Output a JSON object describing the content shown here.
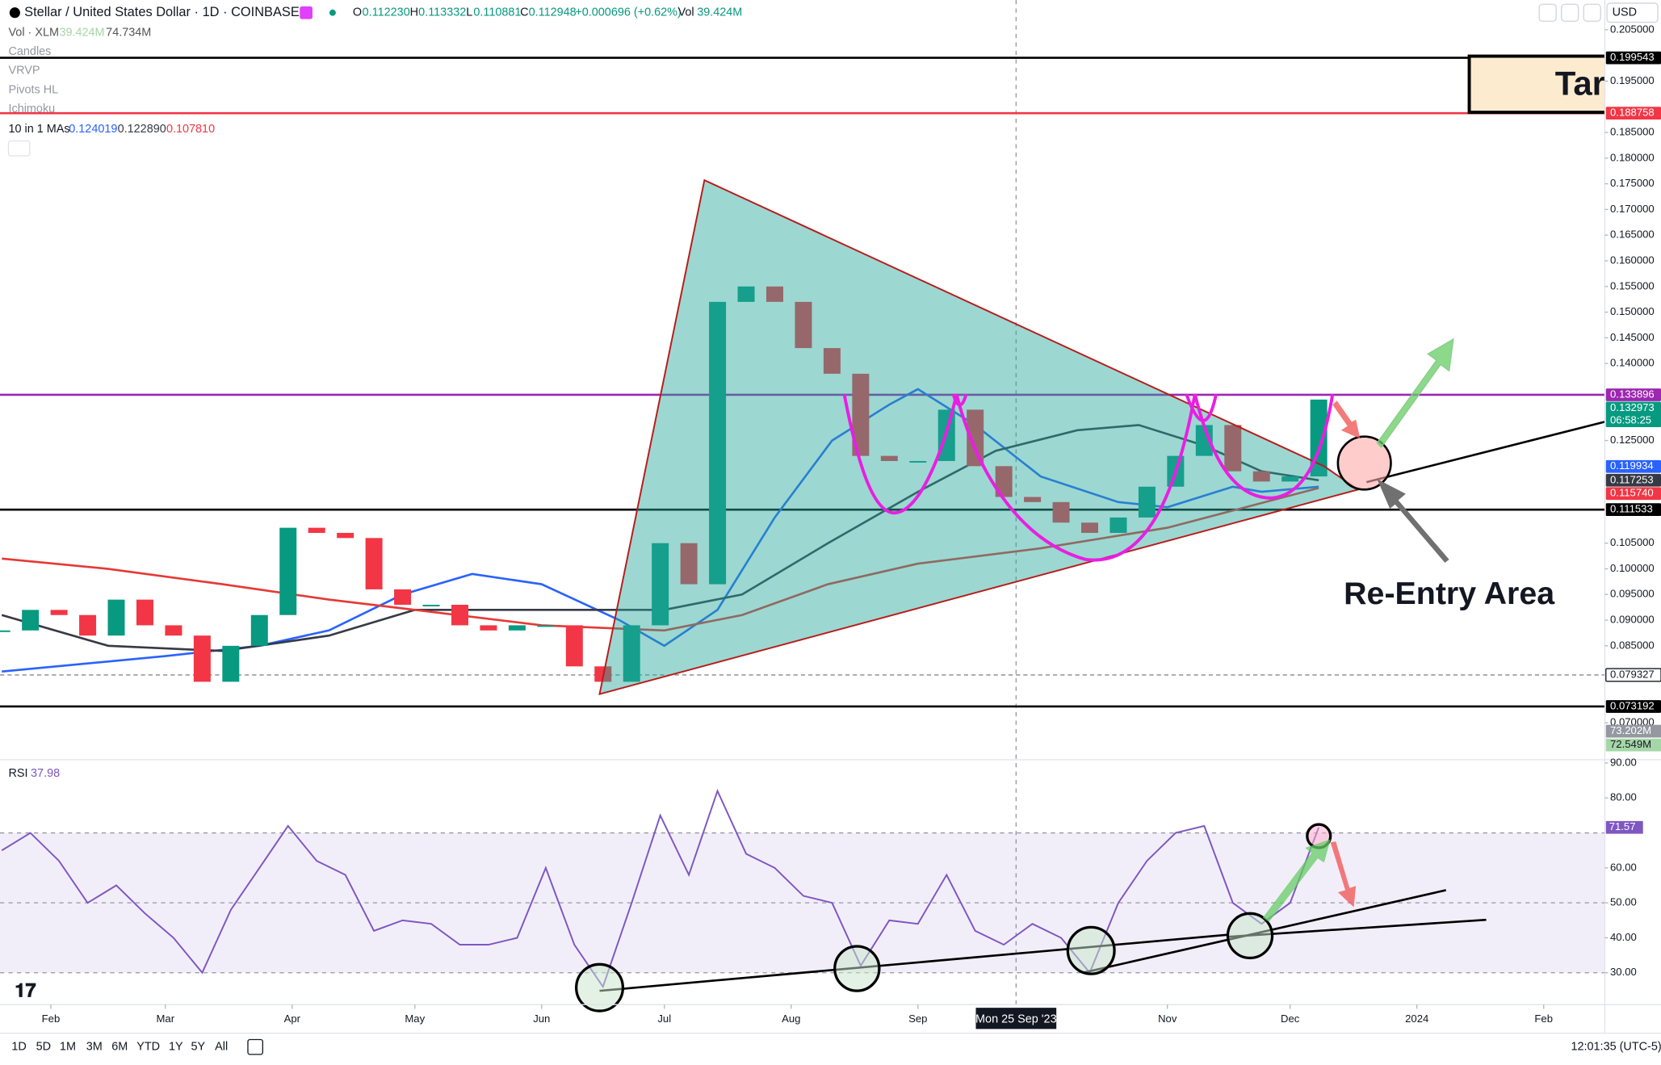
{
  "header": {
    "symbol": "Stellar / United States Dollar · 1D · COINBASE",
    "o_label": "O",
    "open": "0.112230",
    "h_label": "H",
    "high": "0.113332",
    "l_label": "L",
    "low": "0.110881",
    "c_label": "C",
    "close": "0.112948",
    "change": "+0.000696 (+0.62%)",
    "vol_label": "Vol",
    "volume": "39.424M",
    "currency": "USD"
  },
  "indicators": {
    "vol_title": "Vol · XLM",
    "vol_value": "39.424M",
    "vol_ma": "74.734M",
    "hidden": [
      "Candles",
      "VRVP",
      "Pivots HL",
      "Ichimoku"
    ],
    "ma_title": "10 in 1 MAs",
    "ma_values": [
      "0.124019",
      "0.122890",
      "0.107810"
    ],
    "rsi_title": "RSI",
    "rsi_value": "37.98"
  },
  "toolbar": {
    "ranges": [
      "1D",
      "5D",
      "1M",
      "3M",
      "6M",
      "YTD",
      "1Y",
      "5Y",
      "All"
    ],
    "clock": "12:01:35 (UTC-5)"
  },
  "chart_data": [
    {
      "type": "candlestick",
      "x": [
        "2023-01-20",
        "2023-01-27",
        "2023-02-03",
        "2023-02-10",
        "2023-02-17",
        "2023-02-24",
        "2023-03-03",
        "2023-03-10",
        "2023-03-17",
        "2023-03-24",
        "2023-03-31",
        "2023-04-07",
        "2023-04-14",
        "2023-04-21",
        "2023-04-28",
        "2023-05-05",
        "2023-05-12",
        "2023-05-19",
        "2023-05-26",
        "2023-06-02",
        "2023-06-09",
        "2023-06-16",
        "2023-06-23",
        "2023-06-30",
        "2023-07-07",
        "2023-07-14",
        "2023-07-21",
        "2023-07-28",
        "2023-08-04",
        "2023-08-11",
        "2023-08-18",
        "2023-08-25",
        "2023-09-01",
        "2023-09-08",
        "2023-09-15",
        "2023-09-22",
        "2023-09-29",
        "2023-10-06",
        "2023-10-13",
        "2023-10-20",
        "2023-10-27",
        "2023-11-03",
        "2023-11-10",
        "2023-11-17",
        "2023-11-24",
        "2023-12-01",
        "2023-12-08"
      ],
      "close": [
        0.088,
        0.092,
        0.091,
        0.087,
        0.094,
        0.089,
        0.087,
        0.078,
        0.085,
        0.091,
        0.108,
        0.107,
        0.106,
        0.096,
        0.093,
        0.093,
        0.089,
        0.088,
        0.089,
        0.089,
        0.081,
        0.078,
        0.089,
        0.105,
        0.097,
        0.152,
        0.155,
        0.152,
        0.143,
        0.138,
        0.122,
        0.121,
        0.121,
        0.131,
        0.12,
        0.114,
        0.113,
        0.109,
        0.107,
        0.11,
        0.116,
        0.122,
        0.128,
        0.119,
        0.117,
        0.118,
        0.132973
      ],
      "up_color": "#089981",
      "down_color": "#f23645",
      "moving_averages": [
        {
          "color": "#2962ff",
          "x": [
            "2023-01-20",
            "2023-03-01",
            "2023-03-24",
            "2023-04-10",
            "2023-04-28",
            "2023-05-15",
            "2023-06-01",
            "2023-06-20",
            "2023-07-01",
            "2023-07-14",
            "2023-07-28",
            "2023-08-11",
            "2023-08-25",
            "2023-09-01",
            "2023-09-15",
            "2023-10-01",
            "2023-10-20",
            "2023-11-01",
            "2023-11-17",
            "2023-11-24",
            "2023-12-08"
          ],
          "values": [
            0.08,
            0.083,
            0.085,
            0.088,
            0.095,
            0.099,
            0.097,
            0.09,
            0.085,
            0.092,
            0.11,
            0.125,
            0.132,
            0.135,
            0.128,
            0.118,
            0.113,
            0.112,
            0.116,
            0.115,
            0.116
          ]
        },
        {
          "color": "#363a45",
          "x": [
            "2023-01-20",
            "2023-02-15",
            "2023-03-15",
            "2023-04-10",
            "2023-05-01",
            "2023-06-01",
            "2023-07-01",
            "2023-07-20",
            "2023-08-10",
            "2023-09-01",
            "2023-09-20",
            "2023-10-10",
            "2023-10-25",
            "2023-11-10",
            "2023-11-24",
            "2023-12-08"
          ],
          "values": [
            0.091,
            0.085,
            0.084,
            0.087,
            0.092,
            0.092,
            0.092,
            0.095,
            0.105,
            0.115,
            0.123,
            0.127,
            0.128,
            0.124,
            0.119,
            0.117253
          ]
        },
        {
          "color": "#e53935",
          "x": [
            "2023-01-20",
            "2023-02-15",
            "2023-03-15",
            "2023-04-10",
            "2023-05-01",
            "2023-06-01",
            "2023-07-01",
            "2023-07-20",
            "2023-08-10",
            "2023-09-01",
            "2023-10-01",
            "2023-11-01",
            "2023-12-08"
          ],
          "values": [
            0.102,
            0.1,
            0.097,
            0.094,
            0.092,
            0.089,
            0.088,
            0.091,
            0.097,
            0.101,
            0.104,
            0.108,
            0.11574
          ]
        }
      ],
      "ylim": [
        0.0628,
        0.2108
      ],
      "yticks": [
        {
          "value": 0.205,
          "label": "0.205000"
        },
        {
          "value": 0.195,
          "label": "0.195000"
        },
        {
          "value": 0.185,
          "label": "0.185000"
        },
        {
          "value": 0.18,
          "label": "0.180000"
        },
        {
          "value": 0.175,
          "label": "0.175000"
        },
        {
          "value": 0.17,
          "label": "0.170000"
        },
        {
          "value": 0.165,
          "label": "0.165000"
        },
        {
          "value": 0.16,
          "label": "0.160000"
        },
        {
          "value": 0.155,
          "label": "0.155000"
        },
        {
          "value": 0.15,
          "label": "0.150000"
        },
        {
          "value": 0.145,
          "label": "0.145000"
        },
        {
          "value": 0.14,
          "label": "0.140000"
        },
        {
          "value": 0.125,
          "label": "0.125000"
        },
        {
          "value": 0.105,
          "label": "0.105000"
        },
        {
          "value": 0.1,
          "label": "0.100000"
        },
        {
          "value": 0.095,
          "label": "0.095000"
        },
        {
          "value": 0.09,
          "label": "0.090000"
        },
        {
          "value": 0.085,
          "label": "0.085000"
        },
        {
          "value": 0.07,
          "label": "0.070000"
        }
      ],
      "xticks": [
        {
          "value": "2023-02-01",
          "label": "Feb"
        },
        {
          "value": "2023-03-01",
          "label": "Mar"
        },
        {
          "value": "2023-04-01",
          "label": "Apr"
        },
        {
          "value": "2023-05-01",
          "label": "May"
        },
        {
          "value": "2023-06-01",
          "label": "Jun"
        },
        {
          "value": "2023-07-01",
          "label": "Jul"
        },
        {
          "value": "2023-08-01",
          "label": "Aug"
        },
        {
          "value": "2023-09-01",
          "label": "Sep"
        },
        {
          "value": "2023-11-01",
          "label": "Nov"
        },
        {
          "value": "2023-12-01",
          "label": "Dec"
        },
        {
          "value": "2024-01-01",
          "label": "2024"
        },
        {
          "value": "2024-02-01",
          "label": "Feb"
        }
      ],
      "crosshair": {
        "value": "2023-09-25",
        "label": "Mon 25 Sep '23"
      },
      "levels": [
        {
          "value": 0.199543,
          "color": "#000000",
          "line": "solid"
        },
        {
          "value": 0.188758,
          "color": "#f23645",
          "line": "solid"
        },
        {
          "value": 0.133896,
          "color": "#9c27b0",
          "line": "solid"
        },
        {
          "value": 0.132973,
          "color": "#089981",
          "countdown": "06:58:25"
        },
        {
          "value": 0.119934,
          "color": "#2962ff"
        },
        {
          "value": 0.117253,
          "color": "#363a45"
        },
        {
          "value": 0.11574,
          "label": "0.115740",
          "color": "#f23645"
        },
        {
          "value": 0.111533,
          "color": "#000000",
          "line": "solid"
        },
        {
          "value": 0.079327,
          "color": "#ffffff",
          "line": "dashed"
        },
        {
          "value": 0.073192,
          "color": "#000000",
          "line": "solid"
        }
      ],
      "volume_labels": [
        {
          "value": 73202000,
          "label": "73.202M",
          "color": "#9598a1"
        },
        {
          "value": 72549000,
          "label": "72.549M",
          "color": "#a5d6a7"
        }
      ],
      "annotations": [
        "Re-Entry Area",
        "Tar"
      ]
    },
    {
      "type": "line",
      "x": [
        "2023-01-20",
        "2023-01-27",
        "2023-02-03",
        "2023-02-10",
        "2023-02-17",
        "2023-02-24",
        "2023-03-03",
        "2023-03-10",
        "2023-03-17",
        "2023-03-24",
        "2023-03-31",
        "2023-04-07",
        "2023-04-14",
        "2023-04-21",
        "2023-04-28",
        "2023-05-05",
        "2023-05-12",
        "2023-05-19",
        "2023-05-26",
        "2023-06-02",
        "2023-06-09",
        "2023-06-16",
        "2023-06-23",
        "2023-06-30",
        "2023-07-07",
        "2023-07-14",
        "2023-07-21",
        "2023-07-28",
        "2023-08-04",
        "2023-08-11",
        "2023-08-18",
        "2023-08-25",
        "2023-09-01",
        "2023-09-08",
        "2023-09-15",
        "2023-09-22",
        "2023-09-29",
        "2023-10-06",
        "2023-10-13",
        "2023-10-20",
        "2023-10-27",
        "2023-11-03",
        "2023-11-10",
        "2023-11-17",
        "2023-11-24",
        "2023-12-01",
        "2023-12-08"
      ],
      "values": [
        65,
        70,
        62,
        50,
        55,
        47,
        40,
        30,
        48,
        60,
        72,
        62,
        58,
        42,
        45,
        44,
        38,
        38,
        40,
        60,
        38,
        26,
        50,
        75,
        58,
        82,
        64,
        60,
        52,
        50,
        32,
        45,
        44,
        58,
        42,
        38,
        44,
        40,
        30,
        50,
        62,
        70,
        72,
        50,
        44,
        50,
        71.57
      ],
      "color": "#7e57c2",
      "ylim": [
        21.8,
        90.6
      ],
      "yticks": [
        {
          "value": 30,
          "label": "30.00"
        },
        {
          "value": 40,
          "label": "40.00"
        },
        {
          "value": 50,
          "label": "50.00"
        },
        {
          "value": 60,
          "label": "60.00"
        },
        {
          "value": 80,
          "label": "80.00"
        },
        {
          "value": 90,
          "label": "90.00"
        }
      ],
      "levels": [
        70,
        50,
        30
      ],
      "last_label": "71.57"
    }
  ]
}
